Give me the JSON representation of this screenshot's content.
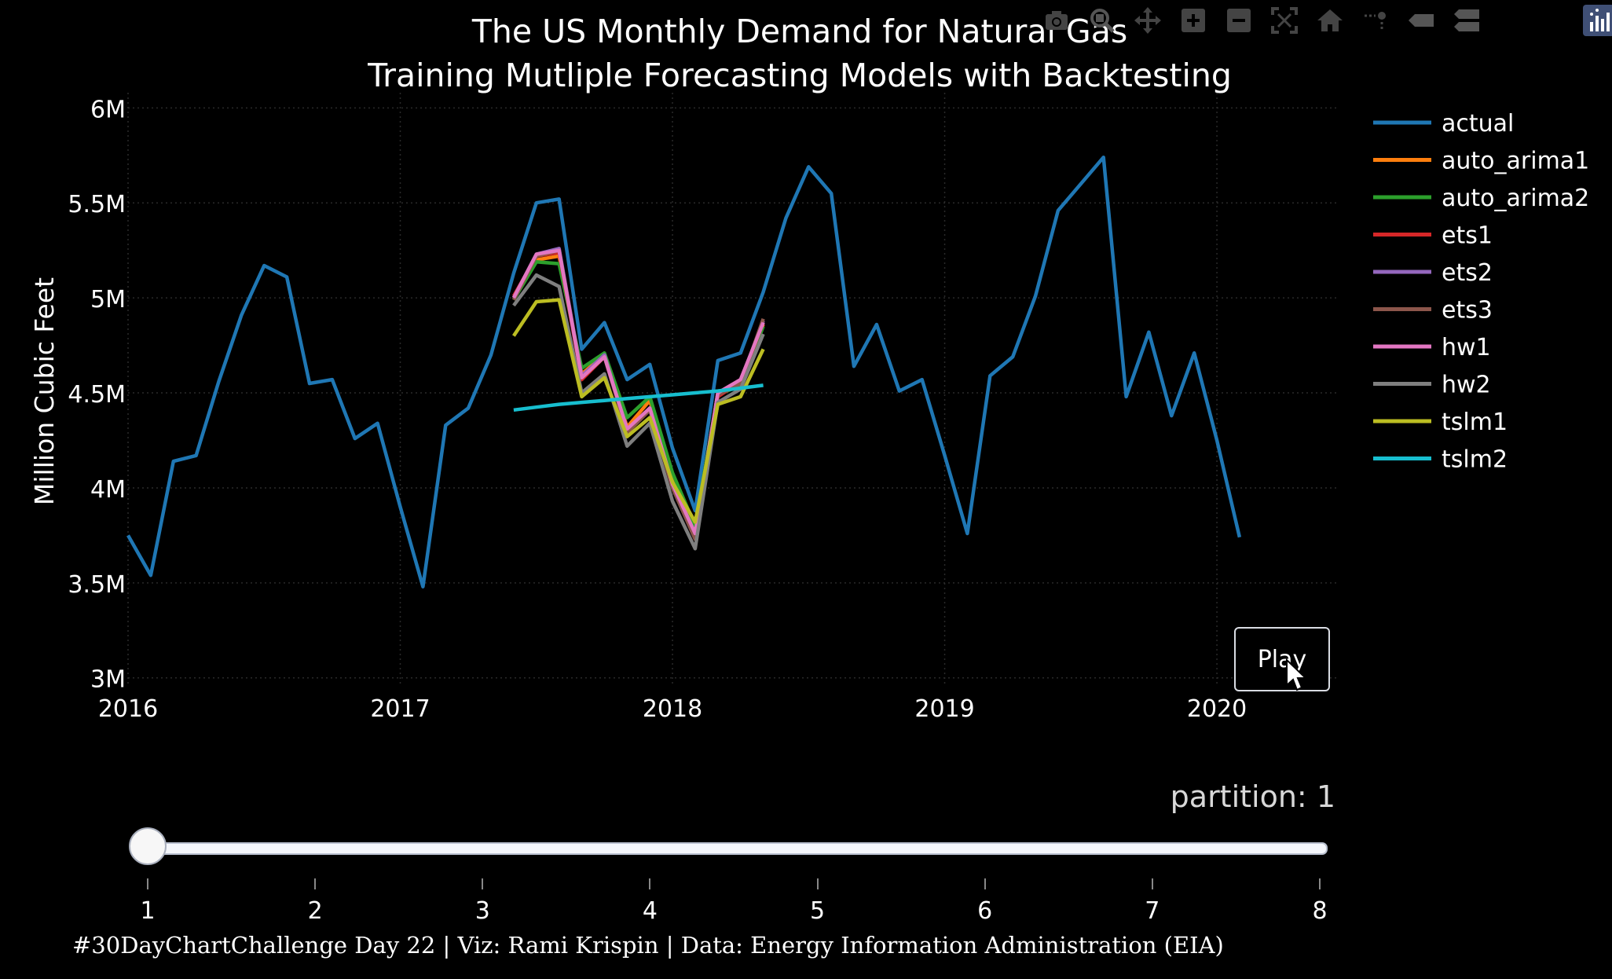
{
  "chart_data": {
    "type": "line",
    "title": "The US Monthly Demand for Natural Gas",
    "subtitle": "Training Mutliple Forecasting Models with Backtesting",
    "ylabel": "Million Cubic Feet",
    "xlabel": "",
    "x_tick_labels": [
      "2016",
      "2017",
      "2018",
      "2019",
      "2020"
    ],
    "y_tick_labels": [
      "3M",
      "3.5M",
      "4M",
      "4.5M",
      "5M",
      "5.5M",
      "6M"
    ],
    "y_ticks": [
      3000000,
      3500000,
      4000000,
      4500000,
      5000000,
      5500000,
      6000000
    ],
    "ylim": [
      2970000,
      6080000
    ],
    "xlim": [
      2016.0,
      2020.45
    ],
    "legend_position": "right",
    "grid": true,
    "series": [
      {
        "name": "actual",
        "color": "#1f77b4",
        "x_start": 2016.0,
        "values": [
          3750000,
          3540000,
          4140000,
          4170000,
          4560000,
          4910000,
          5170000,
          5110000,
          4550000,
          4570000,
          4260000,
          4340000,
          3900000,
          3480000,
          4330000,
          4420000,
          4700000,
          5130000,
          5500000,
          5520000,
          4730000,
          4870000,
          4570000,
          4650000,
          4210000,
          3880000,
          4670000,
          4710000,
          5030000,
          5420000,
          5690000,
          5550000,
          4640000,
          4860000,
          4510000,
          4570000,
          4170000,
          3760000,
          4590000,
          4690000,
          5010000,
          5460000,
          5600000,
          5740000,
          4480000,
          4820000,
          4380000,
          4710000,
          4250000,
          3740000
        ]
      },
      {
        "name": "auto_arima1",
        "color": "#ff7f0e",
        "x_start": 2017.4167,
        "values": [
          5000000,
          5200000,
          5220000,
          4600000,
          4700000,
          4320000,
          4460000,
          4050000,
          3780000,
          4500000,
          4550000,
          4860000
        ]
      },
      {
        "name": "auto_arima2",
        "color": "#2ca02c",
        "x_start": 2017.4167,
        "values": [
          4990000,
          5190000,
          5180000,
          4630000,
          4710000,
          4370000,
          4480000,
          4080000,
          3800000,
          4490000,
          4540000,
          4850000
        ]
      },
      {
        "name": "ets1",
        "color": "#d62728",
        "x_start": 2017.4167,
        "values": [
          5010000,
          5220000,
          5240000,
          4570000,
          4690000,
          4300000,
          4420000,
          4020000,
          3750000,
          4480000,
          4560000,
          4870000
        ]
      },
      {
        "name": "ets2",
        "color": "#9467bd",
        "x_start": 2017.4167,
        "values": [
          5000000,
          5230000,
          5260000,
          4590000,
          4700000,
          4300000,
          4420000,
          4010000,
          3740000,
          4500000,
          4560000,
          4880000
        ]
      },
      {
        "name": "ets3",
        "color": "#8c564b",
        "x_start": 2017.4167,
        "values": [
          4990000,
          5220000,
          5250000,
          4580000,
          4690000,
          4290000,
          4410000,
          4000000,
          3730000,
          4490000,
          4550000,
          4890000
        ]
      },
      {
        "name": "hw1",
        "color": "#e377c2",
        "x_start": 2017.4167,
        "values": [
          5000000,
          5230000,
          5250000,
          4580000,
          4690000,
          4310000,
          4420000,
          4020000,
          3760000,
          4500000,
          4570000,
          4870000
        ]
      },
      {
        "name": "hw2",
        "color": "#7f7f7f",
        "x_start": 2017.4167,
        "values": [
          4960000,
          5120000,
          5060000,
          4500000,
          4600000,
          4220000,
          4340000,
          3930000,
          3680000,
          4450000,
          4520000,
          4810000
        ]
      },
      {
        "name": "tslm1",
        "color": "#bcbd22",
        "x_start": 2017.4167,
        "values": [
          4800000,
          4980000,
          4990000,
          4480000,
          4580000,
          4270000,
          4370000,
          4030000,
          3820000,
          4440000,
          4480000,
          4730000
        ]
      },
      {
        "name": "tslm2",
        "color": "#17becf",
        "x_start": 2017.4167,
        "values": [
          4410000,
          4425000,
          4440000,
          4450000,
          4460000,
          4470000,
          4480000,
          4490000,
          4500000,
          4510000,
          4525000,
          4540000
        ]
      }
    ]
  },
  "controls": {
    "play_label": "Play",
    "slider_label": "partition: 1",
    "slider_steps": [
      "1",
      "2",
      "3",
      "4",
      "5",
      "6",
      "7",
      "8"
    ],
    "slider_value": 1
  },
  "modebar": {
    "icons": [
      "camera-icon",
      "zoom-icon",
      "pan-icon",
      "zoom-in-icon",
      "zoom-out-icon",
      "autoscale-icon",
      "reset-axes-icon",
      "spike-lines-icon",
      "hover-closest-icon",
      "hover-compare-icon",
      "plotly-logo-icon"
    ]
  },
  "caption": "#30DayChartChallenge Day 22 | Viz: Rami Krispin | Data: Energy Information Administration (EIA)"
}
